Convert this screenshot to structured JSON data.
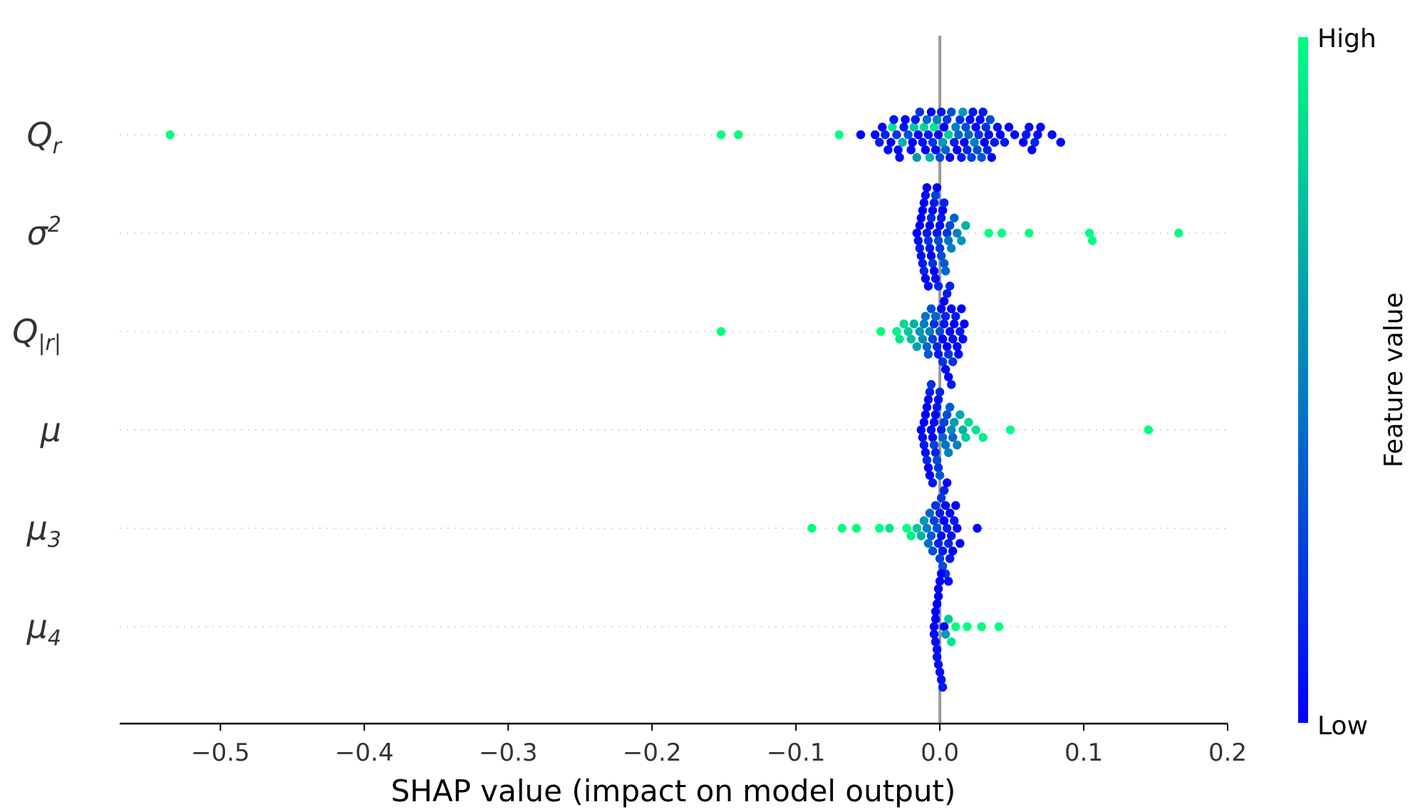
{
  "chart_data": {
    "type": "scatter",
    "subtype": "shap-beeswarm",
    "title": "",
    "xlabel": "SHAP value (impact on model output)",
    "ylabel": "",
    "xlim": [
      -0.57,
      0.2
    ],
    "xticks": [
      -0.5,
      -0.4,
      -0.3,
      -0.2,
      -0.1,
      0.0,
      0.1,
      0.2
    ],
    "xtick_labels": [
      "−0.5",
      "−0.4",
      "−0.3",
      "−0.2",
      "−0.1",
      "0.0",
      "0.1",
      "0.2"
    ],
    "colorbar": {
      "title": "Feature value",
      "high_label": "High",
      "low_label": "Low",
      "high_color": "#00ff80",
      "low_color": "#0000ff"
    },
    "features": [
      {
        "name": "Q_r",
        "base": "Q",
        "sub": "r",
        "sup": "",
        "points": [
          [
            -0.535,
            1.0
          ],
          [
            -0.152,
            1.0
          ],
          [
            -0.14,
            1.0
          ],
          [
            -0.07,
            1.0
          ],
          [
            -0.055,
            0.0
          ],
          [
            -0.045,
            0.05
          ],
          [
            -0.042,
            0.1
          ],
          [
            -0.04,
            0.0
          ],
          [
            -0.038,
            0.15
          ],
          [
            -0.036,
            0.05
          ],
          [
            -0.034,
            0.0
          ],
          [
            -0.033,
            0.9
          ],
          [
            -0.032,
            0.1
          ],
          [
            -0.03,
            0.2
          ],
          [
            -0.029,
            0.0
          ],
          [
            -0.028,
            0.05
          ],
          [
            -0.026,
            0.7
          ],
          [
            -0.025,
            0.1
          ],
          [
            -0.024,
            0.0
          ],
          [
            -0.022,
            0.3
          ],
          [
            -0.02,
            0.05
          ],
          [
            -0.019,
            0.0
          ],
          [
            -0.018,
            0.8
          ],
          [
            -0.017,
            0.1
          ],
          [
            -0.016,
            0.6
          ],
          [
            -0.015,
            0.0
          ],
          [
            -0.014,
            0.2
          ],
          [
            -0.012,
            0.05
          ],
          [
            -0.011,
            0.85
          ],
          [
            -0.01,
            0.0
          ],
          [
            -0.009,
            0.4
          ],
          [
            -0.008,
            0.1
          ],
          [
            -0.007,
            0.7
          ],
          [
            -0.006,
            0.0
          ],
          [
            -0.005,
            0.2
          ],
          [
            -0.004,
            0.9
          ],
          [
            -0.003,
            0.05
          ],
          [
            -0.002,
            0.5
          ],
          [
            -0.001,
            0.0
          ],
          [
            0.0,
            0.3
          ],
          [
            0.001,
            0.1
          ],
          [
            0.002,
            0.6
          ],
          [
            0.003,
            0.0
          ],
          [
            0.004,
            0.4
          ],
          [
            0.005,
            0.2
          ],
          [
            0.006,
            0.8
          ],
          [
            0.007,
            0.0
          ],
          [
            0.008,
            0.3
          ],
          [
            0.01,
            0.1
          ],
          [
            0.011,
            0.5
          ],
          [
            0.012,
            0.0
          ],
          [
            0.013,
            0.4
          ],
          [
            0.014,
            0.2
          ],
          [
            0.015,
            0.1
          ],
          [
            0.016,
            0.6
          ],
          [
            0.017,
            0.0
          ],
          [
            0.018,
            0.3
          ],
          [
            0.019,
            0.15
          ],
          [
            0.02,
            0.4
          ],
          [
            0.021,
            0.05
          ],
          [
            0.022,
            0.25
          ],
          [
            0.023,
            0.1
          ],
          [
            0.024,
            0.5
          ],
          [
            0.025,
            0.0
          ],
          [
            0.026,
            0.3
          ],
          [
            0.027,
            0.2
          ],
          [
            0.028,
            0.05
          ],
          [
            0.029,
            0.35
          ],
          [
            0.03,
            0.1
          ],
          [
            0.031,
            0.0
          ],
          [
            0.032,
            0.2
          ],
          [
            0.033,
            0.15
          ],
          [
            0.034,
            0.05
          ],
          [
            0.035,
            0.3
          ],
          [
            0.036,
            0.0
          ],
          [
            0.038,
            0.1
          ],
          [
            0.04,
            0.05
          ],
          [
            0.042,
            0.0
          ],
          [
            0.045,
            0.1
          ],
          [
            0.048,
            0.0
          ],
          [
            0.052,
            0.05
          ],
          [
            0.058,
            0.0
          ],
          [
            0.06,
            0.1
          ],
          [
            0.062,
            0.05
          ],
          [
            0.064,
            0.0
          ],
          [
            0.066,
            0.15
          ],
          [
            0.068,
            0.05
          ],
          [
            0.07,
            0.0
          ],
          [
            0.078,
            0.05
          ],
          [
            0.084,
            0.0
          ]
        ]
      },
      {
        "name": "sigma^2",
        "base": "σ",
        "sub": "",
        "sup": "2",
        "points": [
          [
            -0.016,
            0.0
          ],
          [
            -0.015,
            0.05
          ],
          [
            -0.014,
            0.0
          ],
          [
            -0.014,
            0.1
          ],
          [
            -0.013,
            0.0
          ],
          [
            -0.013,
            0.05
          ],
          [
            -0.012,
            0.0
          ],
          [
            -0.012,
            0.1
          ],
          [
            -0.011,
            0.0
          ],
          [
            -0.011,
            0.15
          ],
          [
            -0.01,
            0.05
          ],
          [
            -0.01,
            0.0
          ],
          [
            -0.009,
            0.1
          ],
          [
            -0.009,
            0.0
          ],
          [
            -0.008,
            0.2
          ],
          [
            -0.008,
            0.05
          ],
          [
            -0.007,
            0.0
          ],
          [
            -0.007,
            0.1
          ],
          [
            -0.006,
            0.15
          ],
          [
            -0.006,
            0.0
          ],
          [
            -0.005,
            0.05
          ],
          [
            -0.005,
            0.2
          ],
          [
            -0.004,
            0.1
          ],
          [
            -0.004,
            0.0
          ],
          [
            -0.003,
            0.25
          ],
          [
            -0.003,
            0.05
          ],
          [
            -0.002,
            0.1
          ],
          [
            -0.002,
            0.0
          ],
          [
            -0.001,
            0.3
          ],
          [
            -0.001,
            0.15
          ],
          [
            0.0,
            0.05
          ],
          [
            0.0,
            0.2
          ],
          [
            0.001,
            0.1
          ],
          [
            0.001,
            0.3
          ],
          [
            0.002,
            0.0
          ],
          [
            0.003,
            0.35
          ],
          [
            0.003,
            0.15
          ],
          [
            0.004,
            0.4
          ],
          [
            0.005,
            0.2
          ],
          [
            0.006,
            0.45
          ],
          [
            0.007,
            0.3
          ],
          [
            0.008,
            0.5
          ],
          [
            0.01,
            0.4
          ],
          [
            0.012,
            0.5
          ],
          [
            0.015,
            0.6
          ],
          [
            0.018,
            0.7
          ],
          [
            0.034,
            1.0
          ],
          [
            0.043,
            1.0
          ],
          [
            0.062,
            1.0
          ],
          [
            0.104,
            1.0
          ],
          [
            0.106,
            1.0
          ],
          [
            0.166,
            1.0
          ]
        ]
      },
      {
        "name": "Q_|r|",
        "base": "Q",
        "sub": "|r|",
        "sup": "",
        "points": [
          [
            -0.152,
            1.0
          ],
          [
            -0.041,
            1.0
          ],
          [
            -0.03,
            0.95
          ],
          [
            -0.028,
            0.9
          ],
          [
            -0.025,
            0.85
          ],
          [
            -0.022,
            0.8
          ],
          [
            -0.02,
            0.75
          ],
          [
            -0.018,
            0.7
          ],
          [
            -0.016,
            0.65
          ],
          [
            -0.014,
            0.6
          ],
          [
            -0.012,
            0.55
          ],
          [
            -0.011,
            0.5
          ],
          [
            -0.01,
            0.45
          ],
          [
            -0.009,
            0.4
          ],
          [
            -0.008,
            0.35
          ],
          [
            -0.007,
            0.5
          ],
          [
            -0.006,
            0.3
          ],
          [
            -0.005,
            0.25
          ],
          [
            -0.004,
            0.2
          ],
          [
            -0.003,
            0.4
          ],
          [
            -0.002,
            0.15
          ],
          [
            -0.001,
            0.1
          ],
          [
            0.0,
            0.3
          ],
          [
            0.001,
            0.05
          ],
          [
            0.002,
            0.0
          ],
          [
            0.002,
            0.2
          ],
          [
            0.003,
            0.1
          ],
          [
            0.003,
            0.0
          ],
          [
            0.004,
            0.15
          ],
          [
            0.004,
            0.05
          ],
          [
            0.005,
            0.0
          ],
          [
            0.005,
            0.1
          ],
          [
            0.006,
            0.2
          ],
          [
            0.006,
            0.0
          ],
          [
            0.007,
            0.05
          ],
          [
            0.007,
            0.15
          ],
          [
            0.008,
            0.0
          ],
          [
            0.008,
            0.1
          ],
          [
            0.009,
            0.05
          ],
          [
            0.009,
            0.2
          ],
          [
            0.01,
            0.0
          ],
          [
            0.011,
            0.1
          ],
          [
            0.012,
            0.05
          ],
          [
            0.013,
            0.0
          ],
          [
            0.014,
            0.1
          ],
          [
            0.015,
            0.0
          ],
          [
            0.016,
            0.05
          ],
          [
            0.017,
            0.0
          ]
        ]
      },
      {
        "name": "mu",
        "base": "μ",
        "sub": "",
        "sup": "",
        "points": [
          [
            -0.013,
            0.0
          ],
          [
            -0.012,
            0.05
          ],
          [
            -0.011,
            0.0
          ],
          [
            -0.011,
            0.1
          ],
          [
            -0.01,
            0.0
          ],
          [
            -0.01,
            0.05
          ],
          [
            -0.009,
            0.0
          ],
          [
            -0.009,
            0.15
          ],
          [
            -0.008,
            0.05
          ],
          [
            -0.008,
            0.0
          ],
          [
            -0.007,
            0.1
          ],
          [
            -0.007,
            0.0
          ],
          [
            -0.006,
            0.05
          ],
          [
            -0.006,
            0.2
          ],
          [
            -0.005,
            0.0
          ],
          [
            -0.005,
            0.1
          ],
          [
            -0.004,
            0.05
          ],
          [
            -0.004,
            0.25
          ],
          [
            -0.003,
            0.0
          ],
          [
            -0.003,
            0.15
          ],
          [
            -0.002,
            0.1
          ],
          [
            -0.002,
            0.3
          ],
          [
            -0.001,
            0.05
          ],
          [
            -0.001,
            0.2
          ],
          [
            0.0,
            0.15
          ],
          [
            0.0,
            0.35
          ],
          [
            0.001,
            0.1
          ],
          [
            0.002,
            0.4
          ],
          [
            0.003,
            0.25
          ],
          [
            0.004,
            0.45
          ],
          [
            0.005,
            0.3
          ],
          [
            0.006,
            0.5
          ],
          [
            0.007,
            0.35
          ],
          [
            0.008,
            0.55
          ],
          [
            0.009,
            0.4
          ],
          [
            0.01,
            0.6
          ],
          [
            0.012,
            0.5
          ],
          [
            0.014,
            0.65
          ],
          [
            0.016,
            0.7
          ],
          [
            0.018,
            0.8
          ],
          [
            0.02,
            0.85
          ],
          [
            0.025,
            0.9
          ],
          [
            0.03,
            0.95
          ],
          [
            0.049,
            1.0
          ],
          [
            0.145,
            1.0
          ]
        ]
      },
      {
        "name": "mu_3",
        "base": "μ",
        "sub": "3",
        "sup": "",
        "points": [
          [
            -0.089,
            1.0
          ],
          [
            -0.068,
            1.0
          ],
          [
            -0.058,
            1.0
          ],
          [
            -0.042,
            1.0
          ],
          [
            -0.035,
            0.9
          ],
          [
            -0.023,
            1.0
          ],
          [
            -0.02,
            0.95
          ],
          [
            -0.016,
            0.8
          ],
          [
            -0.013,
            0.7
          ],
          [
            -0.011,
            0.6
          ],
          [
            -0.009,
            0.5
          ],
          [
            -0.008,
            0.45
          ],
          [
            -0.007,
            0.4
          ],
          [
            -0.006,
            0.35
          ],
          [
            -0.005,
            0.3
          ],
          [
            -0.004,
            0.25
          ],
          [
            -0.003,
            0.2
          ],
          [
            -0.002,
            0.3
          ],
          [
            -0.001,
            0.15
          ],
          [
            0.0,
            0.1
          ],
          [
            0.0,
            0.25
          ],
          [
            0.001,
            0.05
          ],
          [
            0.001,
            0.2
          ],
          [
            0.002,
            0.1
          ],
          [
            0.002,
            0.3
          ],
          [
            0.003,
            0.0
          ],
          [
            0.003,
            0.15
          ],
          [
            0.004,
            0.05
          ],
          [
            0.004,
            0.2
          ],
          [
            0.005,
            0.1
          ],
          [
            0.005,
            0.0
          ],
          [
            0.006,
            0.15
          ],
          [
            0.006,
            0.05
          ],
          [
            0.007,
            0.0
          ],
          [
            0.007,
            0.1
          ],
          [
            0.008,
            0.05
          ],
          [
            0.009,
            0.0
          ],
          [
            0.01,
            0.1
          ],
          [
            0.011,
            0.0
          ],
          [
            0.012,
            0.05
          ],
          [
            0.014,
            0.0
          ],
          [
            0.026,
            0.0
          ]
        ]
      },
      {
        "name": "mu_4",
        "base": "μ",
        "sub": "4",
        "sup": "",
        "points": [
          [
            -0.004,
            0.0
          ],
          [
            -0.004,
            0.05
          ],
          [
            -0.003,
            0.0
          ],
          [
            -0.003,
            0.05
          ],
          [
            -0.003,
            0.0
          ],
          [
            -0.002,
            0.05
          ],
          [
            -0.002,
            0.0
          ],
          [
            -0.002,
            0.05
          ],
          [
            -0.001,
            0.0
          ],
          [
            -0.001,
            0.05
          ],
          [
            -0.001,
            0.0
          ],
          [
            0.0,
            0.05
          ],
          [
            0.0,
            0.0
          ],
          [
            0.001,
            0.05
          ],
          [
            0.001,
            0.0
          ],
          [
            0.002,
            0.1
          ],
          [
            0.003,
            0.0
          ],
          [
            0.004,
            0.6
          ],
          [
            0.006,
            0.8
          ],
          [
            0.008,
            0.9
          ],
          [
            0.011,
            1.0
          ],
          [
            0.019,
            1.0
          ],
          [
            0.029,
            1.0
          ],
          [
            0.041,
            1.0
          ]
        ]
      }
    ]
  }
}
